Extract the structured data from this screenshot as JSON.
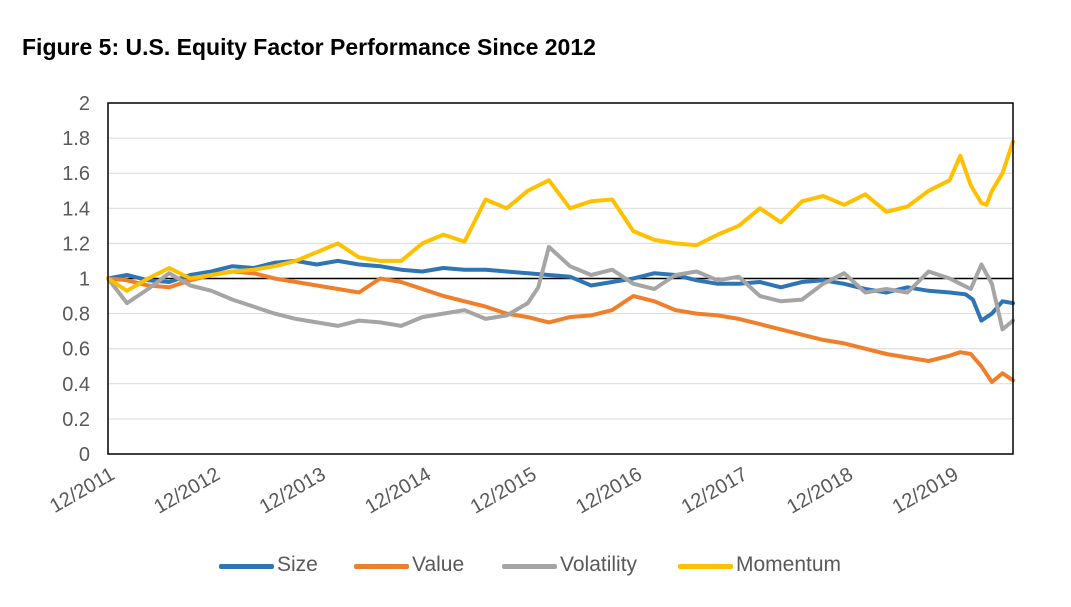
{
  "chart_data": {
    "type": "line",
    "title": "Figure 5: U.S. Equity Factor Performance Since 2012",
    "xlabel": "",
    "ylabel": "",
    "ylim": [
      0,
      2
    ],
    "yticks": [
      "2",
      "1.8",
      "1.6",
      "1.4",
      "1.2",
      "1",
      "0.8",
      "0.6",
      "0.4",
      "0.2",
      "0"
    ],
    "y_tick_values": [
      2,
      1.8,
      1.6,
      1.4,
      1.2,
      1,
      0.8,
      0.6,
      0.4,
      0.2,
      0
    ],
    "xticks": [
      "12/2011",
      "12/2012",
      "12/2013",
      "12/2014",
      "12/2015",
      "12/2016",
      "12/2017",
      "12/2018",
      "12/2019"
    ],
    "xlim": [
      "2011-12",
      "2020-06"
    ],
    "x_unit": "year",
    "x_range": [
      2011.92,
      2020.5
    ],
    "x_tick_values": [
      2011.92,
      2012.92,
      2013.92,
      2014.92,
      2015.92,
      2016.92,
      2017.92,
      2018.92,
      2019.92
    ],
    "reference_line": 1,
    "grid": "horizontal",
    "legend_position": "bottom",
    "series": [
      {
        "name": "Size",
        "color": "#2E75B6",
        "x": [
          2011.92,
          2012.1,
          2012.3,
          2012.5,
          2012.7,
          2012.9,
          2013.1,
          2013.3,
          2013.5,
          2013.7,
          2013.9,
          2014.1,
          2014.3,
          2014.5,
          2014.7,
          2014.9,
          2015.1,
          2015.3,
          2015.5,
          2015.7,
          2015.9,
          2016.1,
          2016.3,
          2016.5,
          2016.7,
          2016.9,
          2017.1,
          2017.3,
          2017.5,
          2017.7,
          2017.9,
          2018.1,
          2018.3,
          2018.5,
          2018.7,
          2018.9,
          2019.1,
          2019.3,
          2019.5,
          2019.7,
          2019.9,
          2020.05,
          2020.12,
          2020.2,
          2020.3,
          2020.4,
          2020.5
        ],
        "values": [
          1.0,
          1.02,
          0.99,
          0.98,
          1.02,
          1.04,
          1.07,
          1.06,
          1.09,
          1.1,
          1.08,
          1.1,
          1.08,
          1.07,
          1.05,
          1.04,
          1.06,
          1.05,
          1.05,
          1.04,
          1.03,
          1.02,
          1.01,
          0.96,
          0.98,
          1.0,
          1.03,
          1.02,
          0.99,
          0.97,
          0.97,
          0.98,
          0.95,
          0.98,
          0.99,
          0.97,
          0.94,
          0.92,
          0.95,
          0.93,
          0.92,
          0.91,
          0.88,
          0.76,
          0.8,
          0.87,
          0.86
        ]
      },
      {
        "name": "Value",
        "color": "#F07F2B",
        "x": [
          2011.92,
          2012.1,
          2012.3,
          2012.5,
          2012.7,
          2012.9,
          2013.1,
          2013.3,
          2013.5,
          2013.7,
          2013.9,
          2014.1,
          2014.3,
          2014.5,
          2014.7,
          2014.9,
          2015.1,
          2015.3,
          2015.5,
          2015.7,
          2015.9,
          2016.1,
          2016.3,
          2016.5,
          2016.7,
          2016.9,
          2017.1,
          2017.3,
          2017.5,
          2017.7,
          2017.9,
          2018.1,
          2018.3,
          2018.5,
          2018.7,
          2018.9,
          2019.1,
          2019.3,
          2019.5,
          2019.7,
          2019.9,
          2020.0,
          2020.1,
          2020.2,
          2020.3,
          2020.4,
          2020.5
        ],
        "values": [
          1.0,
          0.99,
          0.96,
          0.95,
          0.99,
          1.02,
          1.04,
          1.03,
          1.0,
          0.98,
          0.96,
          0.94,
          0.92,
          1.0,
          0.98,
          0.94,
          0.9,
          0.87,
          0.84,
          0.8,
          0.78,
          0.75,
          0.78,
          0.79,
          0.82,
          0.9,
          0.87,
          0.82,
          0.8,
          0.79,
          0.77,
          0.74,
          0.71,
          0.68,
          0.65,
          0.63,
          0.6,
          0.57,
          0.55,
          0.53,
          0.56,
          0.58,
          0.57,
          0.5,
          0.41,
          0.46,
          0.42
        ]
      },
      {
        "name": "Volatility",
        "color": "#A5A5A5",
        "x": [
          2011.92,
          2012.1,
          2012.3,
          2012.5,
          2012.7,
          2012.9,
          2013.1,
          2013.3,
          2013.5,
          2013.7,
          2013.9,
          2014.1,
          2014.3,
          2014.5,
          2014.7,
          2014.9,
          2015.1,
          2015.3,
          2015.5,
          2015.7,
          2015.9,
          2016.0,
          2016.1,
          2016.3,
          2016.5,
          2016.7,
          2016.9,
          2017.1,
          2017.3,
          2017.5,
          2017.7,
          2017.9,
          2018.1,
          2018.3,
          2018.5,
          2018.7,
          2018.9,
          2019.1,
          2019.3,
          2019.5,
          2019.7,
          2019.9,
          2020.0,
          2020.1,
          2020.2,
          2020.3,
          2020.4,
          2020.5
        ],
        "values": [
          1.0,
          0.86,
          0.94,
          1.03,
          0.96,
          0.93,
          0.88,
          0.84,
          0.8,
          0.77,
          0.75,
          0.73,
          0.76,
          0.75,
          0.73,
          0.78,
          0.8,
          0.82,
          0.77,
          0.79,
          0.86,
          0.95,
          1.18,
          1.07,
          1.02,
          1.05,
          0.97,
          0.94,
          1.02,
          1.04,
          0.99,
          1.01,
          0.9,
          0.87,
          0.88,
          0.97,
          1.03,
          0.92,
          0.94,
          0.92,
          1.04,
          1.0,
          0.97,
          0.94,
          1.08,
          0.97,
          0.71,
          0.76
        ]
      },
      {
        "name": "Momentum",
        "color": "#FFC000",
        "x": [
          2011.92,
          2012.1,
          2012.3,
          2012.5,
          2012.7,
          2012.9,
          2013.1,
          2013.3,
          2013.5,
          2013.7,
          2013.9,
          2014.1,
          2014.3,
          2014.5,
          2014.7,
          2014.9,
          2015.1,
          2015.3,
          2015.5,
          2015.7,
          2015.9,
          2016.1,
          2016.3,
          2016.5,
          2016.7,
          2016.9,
          2017.1,
          2017.3,
          2017.5,
          2017.7,
          2017.9,
          2018.1,
          2018.3,
          2018.5,
          2018.7,
          2018.9,
          2019.1,
          2019.3,
          2019.5,
          2019.7,
          2019.9,
          2020.0,
          2020.1,
          2020.2,
          2020.25,
          2020.3,
          2020.4,
          2020.5
        ],
        "values": [
          1.0,
          0.93,
          1.0,
          1.06,
          1.0,
          1.02,
          1.04,
          1.05,
          1.07,
          1.1,
          1.15,
          1.2,
          1.12,
          1.1,
          1.1,
          1.2,
          1.25,
          1.21,
          1.45,
          1.4,
          1.5,
          1.56,
          1.4,
          1.44,
          1.45,
          1.27,
          1.22,
          1.2,
          1.19,
          1.25,
          1.3,
          1.4,
          1.32,
          1.44,
          1.47,
          1.42,
          1.48,
          1.38,
          1.41,
          1.5,
          1.56,
          1.7,
          1.53,
          1.43,
          1.42,
          1.5,
          1.6,
          1.78
        ]
      }
    ]
  }
}
